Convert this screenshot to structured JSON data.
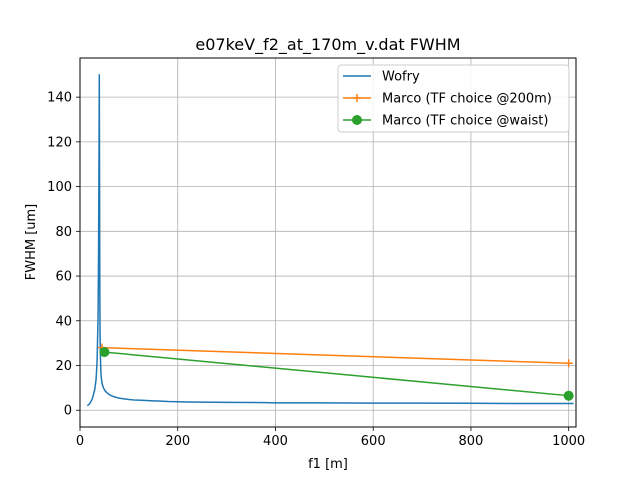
{
  "chart_data": {
    "type": "line",
    "title": "e07keV_f2_at_170m_v.dat FWHM",
    "xlabel": "f1 [m]",
    "ylabel": "FWHM [um]",
    "xlim": [
      0,
      1015
    ],
    "ylim": [
      -7.5,
      157.5
    ],
    "xticks": [
      0,
      200,
      400,
      600,
      800,
      1000
    ],
    "yticks": [
      0,
      20,
      40,
      60,
      80,
      100,
      120,
      140
    ],
    "grid": true,
    "legend_position": "upper right",
    "series": [
      {
        "name": "Wofry",
        "color": "#1f77b4",
        "marker": "none",
        "x": [
          15,
          20,
          25,
          30,
          33,
          35,
          37,
          38,
          39,
          39.5,
          40,
          40.5,
          41,
          42,
          43,
          45,
          48,
          52,
          57,
          63,
          70,
          80,
          90,
          100,
          110,
          120,
          130,
          140,
          150,
          160,
          170,
          180,
          200,
          220,
          250,
          300,
          380,
          400,
          500,
          600,
          700,
          800,
          900,
          1000,
          1010
        ],
        "y": [
          2,
          3,
          5,
          9,
          14,
          22,
          42,
          70,
          120,
          150,
          105,
          60,
          35,
          22,
          16,
          12,
          10,
          8.5,
          7.5,
          6.6,
          6,
          5.4,
          5.1,
          4.8,
          4.6,
          4.5,
          4.4,
          4.3,
          4.2,
          4.1,
          4.0,
          3.9,
          3.8,
          3.7,
          3.6,
          3.5,
          3.4,
          3.3,
          3.3,
          3.2,
          3.2,
          3.1,
          3.0,
          3.0,
          3.0
        ]
      },
      {
        "name": "Marco (TF choice @200m)",
        "color": "#ff7f0e",
        "marker": "plus",
        "x": [
          45,
          1000
        ],
        "y": [
          28,
          21
        ]
      },
      {
        "name": "Marco (TF choice @waist)",
        "color": "#2ca02c",
        "marker": "circle",
        "x": [
          50,
          1000
        ],
        "y": [
          26,
          6.5
        ]
      }
    ]
  }
}
